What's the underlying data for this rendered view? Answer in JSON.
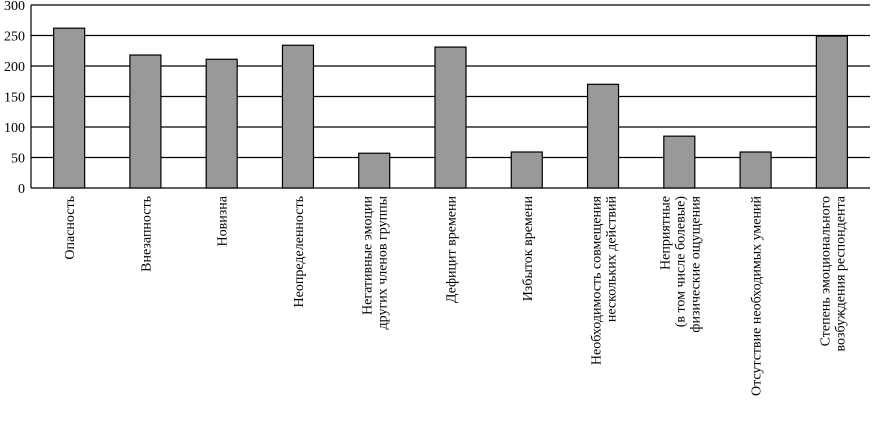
{
  "chart_data": {
    "type": "bar",
    "categories": [
      [
        "Опасность"
      ],
      [
        "Внезапность"
      ],
      [
        "Новизна"
      ],
      [
        "Неопределенность"
      ],
      [
        "Негативные эмоции",
        "других членов группы"
      ],
      [
        "Дефицит времени"
      ],
      [
        "Избыток времени"
      ],
      [
        "Необходимость совмещения",
        "нескольких действий"
      ],
      [
        "Неприятные",
        "(в том числе болевые)",
        "физические ощущения"
      ],
      [
        "Отсутствие необходимых умений"
      ],
      [
        "Степень эмоционального",
        "возбуждения респондента"
      ]
    ],
    "values": [
      262,
      218,
      211,
      234,
      57,
      231,
      59,
      170,
      85,
      59,
      249
    ],
    "color": "#999999",
    "ylim": [
      0,
      300
    ],
    "yticks": [
      0,
      50,
      100,
      150,
      200,
      250,
      300
    ],
    "grid": true
  }
}
